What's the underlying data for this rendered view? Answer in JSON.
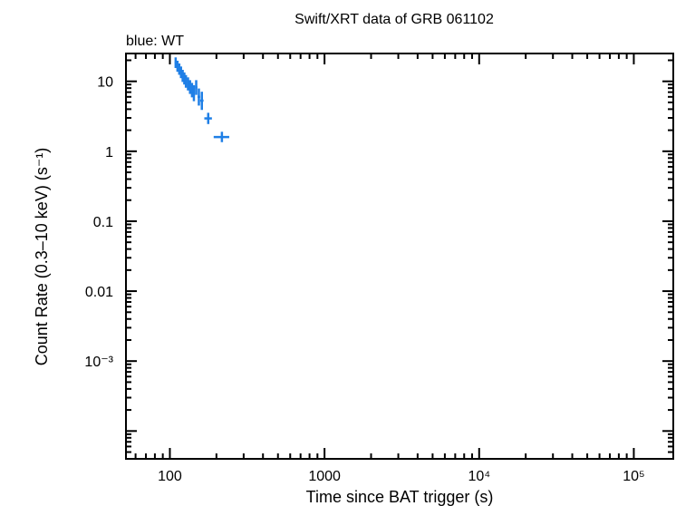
{
  "chart_data": {
    "type": "scatter",
    "title": "Swift/XRT data of GRB 061102",
    "subtitle": "blue: WT",
    "xlabel": "Time since BAT trigger (s)",
    "ylabel": "Count Rate (0.3–10 keV) (s⁻¹)",
    "x_scale": "log",
    "y_scale": "log",
    "xlim": [
      52,
      180000
    ],
    "ylim": [
      4e-05,
      25
    ],
    "x_ticks": [
      {
        "value": 100,
        "label": "100"
      },
      {
        "value": 1000,
        "label": "1000"
      },
      {
        "value": 10000,
        "label": "10⁴"
      },
      {
        "value": 100000,
        "label": "10⁵"
      }
    ],
    "y_ticks": [
      {
        "value": 10,
        "label": "10"
      },
      {
        "value": 1,
        "label": "1"
      },
      {
        "value": 0.1,
        "label": "0.1"
      },
      {
        "value": 0.01,
        "label": "0.01"
      },
      {
        "value": 0.001,
        "label": "10⁻³"
      }
    ],
    "grid": false,
    "series": [
      {
        "name": "WT",
        "color": "#1f7fe6",
        "points": [
          {
            "x": 109,
            "y": 18.5,
            "xerr": [
              1.5,
              1.5
            ],
            "yerr": [
              3.0,
              3.5
            ]
          },
          {
            "x": 112,
            "y": 16.5,
            "xerr": [
              1.5,
              1.5
            ],
            "yerr": [
              2.8,
              3.2
            ]
          },
          {
            "x": 115,
            "y": 15.0,
            "xerr": [
              1.5,
              1.5
            ],
            "yerr": [
              2.6,
              3.0
            ]
          },
          {
            "x": 118,
            "y": 13.5,
            "xerr": [
              1.5,
              1.5
            ],
            "yerr": [
              2.4,
              2.8
            ]
          },
          {
            "x": 121,
            "y": 12.0,
            "xerr": [
              1.5,
              1.5
            ],
            "yerr": [
              2.2,
              2.6
            ]
          },
          {
            "x": 124,
            "y": 11.0,
            "xerr": [
              1.5,
              1.5
            ],
            "yerr": [
              2.0,
              2.4
            ]
          },
          {
            "x": 127,
            "y": 10.0,
            "xerr": [
              1.5,
              1.5
            ],
            "yerr": [
              1.9,
              2.3
            ]
          },
          {
            "x": 131,
            "y": 9.2,
            "xerr": [
              2,
              2
            ],
            "yerr": [
              1.8,
              2.2
            ]
          },
          {
            "x": 135,
            "y": 8.3,
            "xerr": [
              2,
              2
            ],
            "yerr": [
              1.7,
              2.1
            ]
          },
          {
            "x": 139,
            "y": 7.5,
            "xerr": [
              2,
              2
            ],
            "yerr": [
              1.6,
              2.0
            ]
          },
          {
            "x": 143,
            "y": 6.8,
            "xerr": [
              2,
              2
            ],
            "yerr": [
              1.6,
              2.0
            ]
          },
          {
            "x": 148,
            "y": 8.2,
            "xerr": [
              2.5,
              2.5
            ],
            "yerr": [
              1.8,
              2.2
            ]
          },
          {
            "x": 154,
            "y": 6.0,
            "xerr": [
              3,
              3
            ],
            "yerr": [
              1.5,
              1.9
            ]
          },
          {
            "x": 161,
            "y": 5.3,
            "xerr": [
              4,
              4
            ],
            "yerr": [
              1.4,
              1.8
            ]
          },
          {
            "x": 177,
            "y": 2.95,
            "xerr": [
              10,
              10
            ],
            "yerr": [
              0.5,
              0.6
            ]
          },
          {
            "x": 217,
            "y": 1.6,
            "xerr": [
              25,
              25
            ],
            "yerr": [
              0.25,
              0.3
            ]
          }
        ]
      }
    ]
  }
}
